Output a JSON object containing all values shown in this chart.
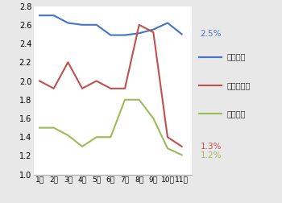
{
  "months": [
    "1월",
    "2월",
    "3월",
    "4월",
    "5월",
    "6월",
    "7월",
    "8월",
    "9월",
    "10월",
    "11월"
  ],
  "mulga_insik": [
    2.7,
    2.7,
    2.62,
    2.6,
    2.6,
    2.49,
    2.49,
    2.51,
    2.55,
    2.62,
    2.5
  ],
  "sobija_mulga": [
    2.0,
    1.92,
    2.2,
    1.92,
    2.0,
    1.92,
    1.92,
    2.6,
    2.52,
    1.4,
    1.3
  ],
  "geunwon_mulga": [
    1.5,
    1.5,
    1.42,
    1.3,
    1.4,
    1.4,
    1.8,
    1.8,
    1.6,
    1.28,
    1.21
  ],
  "line_colors": [
    "#4472c4",
    "#c0504d",
    "#9bbb59"
  ],
  "legend_labels": [
    "물가인식",
    "소비자물가",
    "근원물가"
  ],
  "ann_2p5": {
    "text": "2.5%",
    "color": "#4472c4"
  },
  "ann_1p3": {
    "text": "1.3%",
    "color": "#c0504d"
  },
  "ann_1p2": {
    "text": "1.2%",
    "color": "#9bbb59"
  },
  "ylim": [
    1.0,
    2.8
  ],
  "yticks": [
    1.0,
    1.2,
    1.4,
    1.6,
    1.8,
    2.0,
    2.2,
    2.4,
    2.6,
    2.8
  ],
  "bg_color": "#e8e8e8",
  "plot_bg_color": "#ffffff",
  "spine_color": "#aaaaaa"
}
